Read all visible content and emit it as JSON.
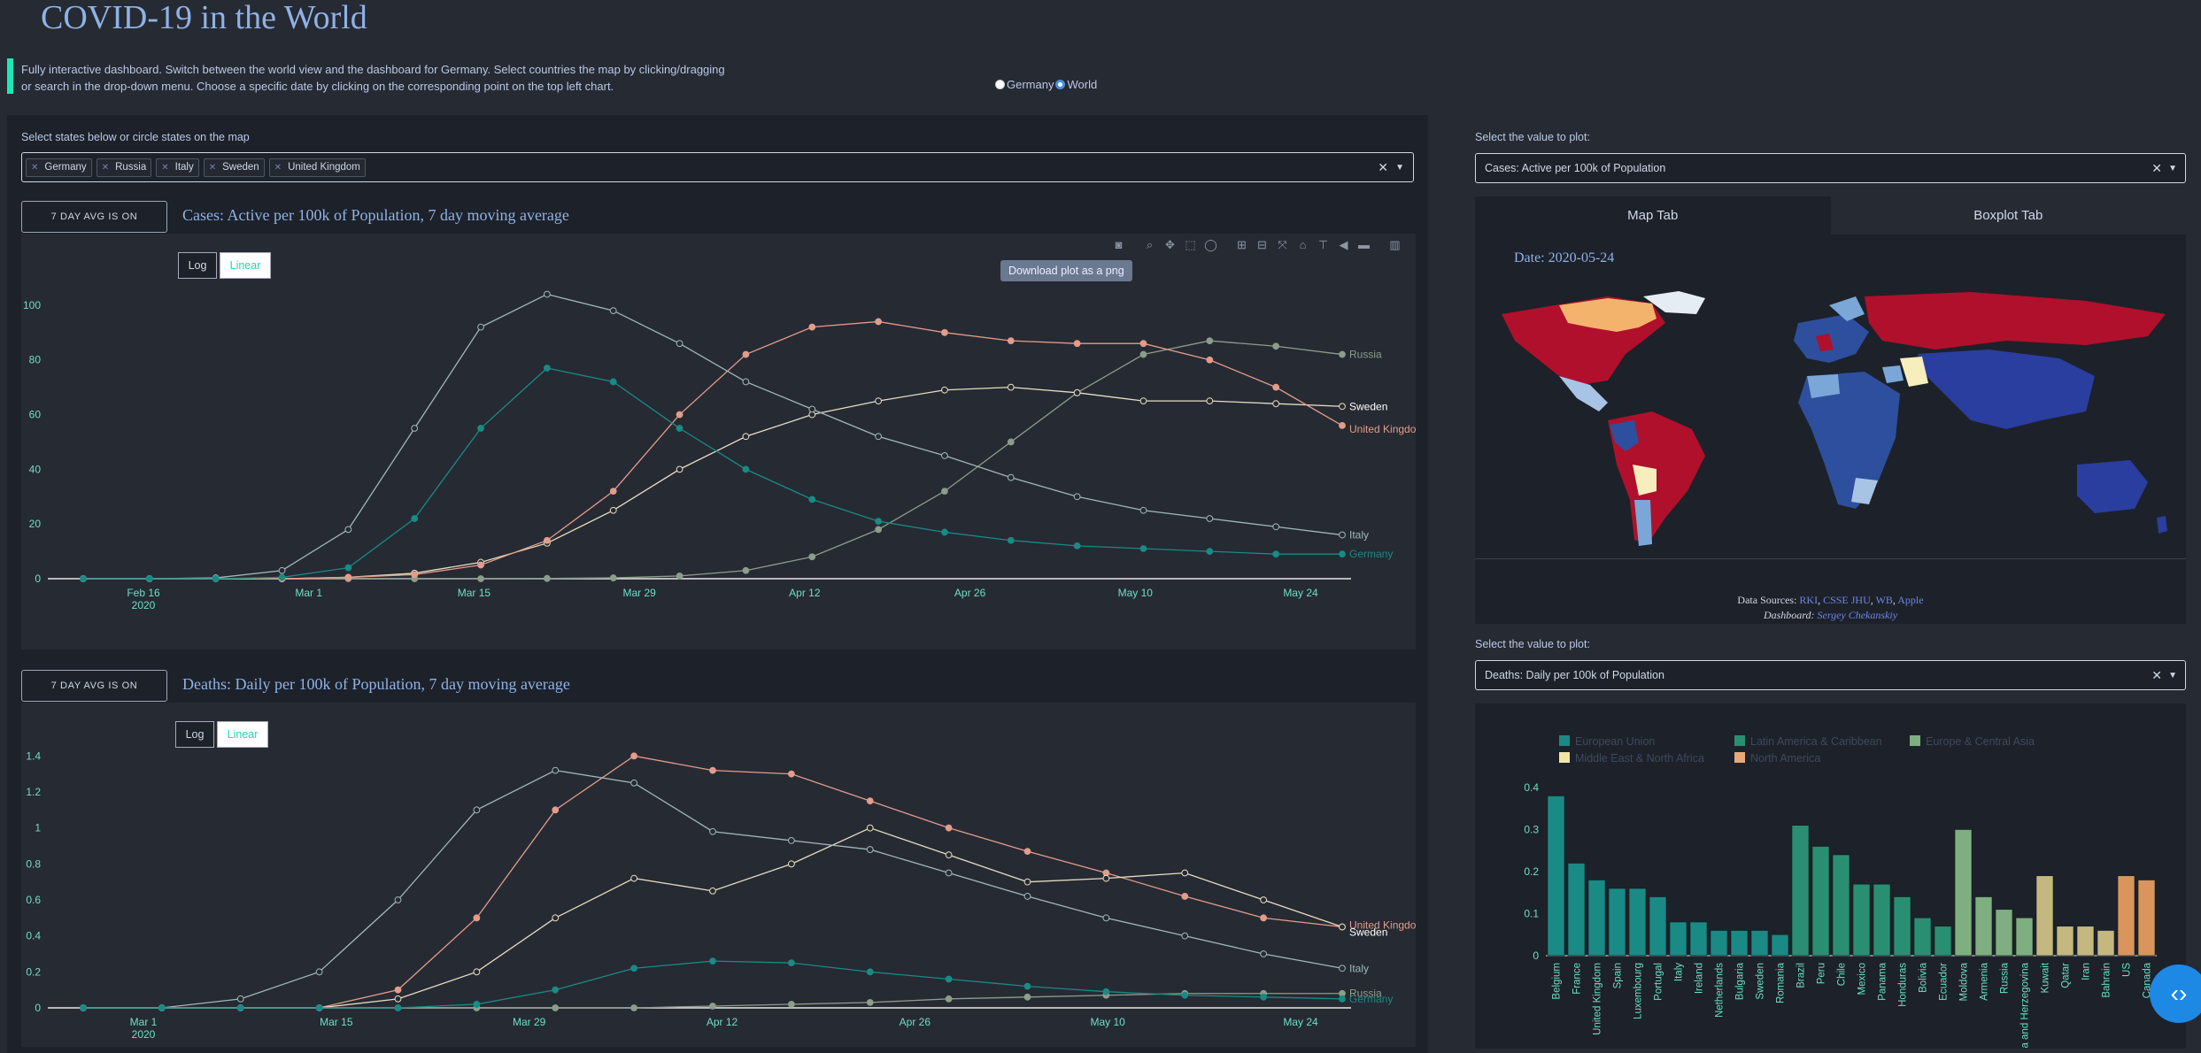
{
  "header": {
    "title": "COVID-19 in the World",
    "intro": "Fully interactive dashboard. Switch between the world view and the dashboard for Germany. Select countries the map by clicking/dragging or search in the drop-down menu. Choose a specific date by clicking on the corresponding point on the top left chart.",
    "view_options": [
      "Germany",
      "World"
    ],
    "view_selected": "World"
  },
  "left": {
    "select_label": "Select states below or circle states on the map",
    "chips": [
      "Germany",
      "Russia",
      "Italy",
      "Sweden",
      "United Kingdom"
    ],
    "avg_button": "7 DAY AVG IS ON",
    "log_label": "Log",
    "linear_label": "Linear",
    "tooltip": "Download plot as a png",
    "chart1_title": "Cases: Active per 100k of Population, 7 day moving average",
    "chart2_title": "Deaths: Daily per 100k of Population, 7 day moving average"
  },
  "right": {
    "select_label1": "Select the value to plot:",
    "select_value1": "Cases: Active per 100k of Population",
    "tab_map": "Map Tab",
    "tab_boxplot": "Boxplot Tab",
    "map_date": "Date: 2020-05-24",
    "sources_prefix": "Data Sources:",
    "sources": [
      "RKI",
      "CSSE JHU",
      "WB",
      "Apple"
    ],
    "dashboard_prefix": "Dashboard:",
    "dashboard_author": "Sergey Chekanskiy",
    "select_label2": "Select the value to plot:",
    "select_value2": "Deaths: Daily per 100k of Population"
  },
  "colors": {
    "germany": "#1a8a85",
    "russia": "#8c9d8a",
    "italy": "#9fb8b8",
    "sweden": "#e8ddc0",
    "uk": "#e39c8a",
    "accent": "#1de9b6",
    "peak": "#2f8a2a",
    "marker_red": "#e0302a"
  },
  "chart_data": [
    {
      "type": "line",
      "title": "Cases: Active per 100k of Population, 7 day moving average",
      "x_ticks": [
        "Feb 16\n2020",
        "Mar 1",
        "Mar 15",
        "Mar 29",
        "Apr 12",
        "Apr 26",
        "May 10",
        "May 24"
      ],
      "ylim": [
        0,
        110
      ],
      "y_ticks": [
        0,
        20,
        40,
        60,
        80,
        100
      ],
      "series": [
        {
          "name": "Russia",
          "values": [
            0,
            0,
            0,
            0,
            0,
            0,
            0,
            0.1,
            0.3,
            1,
            3,
            8,
            18,
            32,
            50,
            68,
            82,
            87,
            85,
            82
          ]
        },
        {
          "name": "Sweden",
          "values": [
            0,
            0,
            0,
            0,
            0.5,
            2,
            6,
            13,
            25,
            40,
            52,
            60,
            65,
            69,
            70,
            68,
            65,
            65,
            64,
            63
          ]
        },
        {
          "name": "United Kingdom",
          "values": [
            0,
            0,
            0,
            0,
            0.5,
            1.5,
            5,
            14,
            32,
            60,
            82,
            92,
            94,
            90,
            87,
            86,
            86,
            80,
            70,
            56
          ]
        },
        {
          "name": "Italy",
          "values": [
            0,
            0,
            0.3,
            3,
            18,
            55,
            92,
            104,
            98,
            86,
            72,
            62,
            52,
            45,
            37,
            30,
            25,
            22,
            19,
            16
          ]
        },
        {
          "name": "Germany",
          "values": [
            0,
            0,
            0,
            0.5,
            4,
            22,
            55,
            77,
            72,
            55,
            40,
            29,
            21,
            17,
            14,
            12,
            11,
            10,
            9,
            9
          ]
        }
      ]
    },
    {
      "type": "line",
      "title": "Deaths: Daily per 100k of Population, 7 day moving average",
      "x_ticks": [
        "Mar 1\n2020",
        "Mar 15",
        "Mar 29",
        "Apr 12",
        "Apr 26",
        "May 10",
        "May 24"
      ],
      "ylim": [
        0,
        1.5
      ],
      "y_ticks": [
        0,
        0.2,
        0.4,
        0.6,
        0.8,
        1,
        1.2,
        1.4
      ],
      "series": [
        {
          "name": "United Kingdom",
          "values": [
            0,
            0,
            0,
            0,
            0.1,
            0.5,
            1.1,
            1.4,
            1.32,
            1.3,
            1.15,
            1.0,
            0.87,
            0.75,
            0.62,
            0.5,
            0.45
          ]
        },
        {
          "name": "Sweden",
          "values": [
            0,
            0,
            0,
            0,
            0.05,
            0.2,
            0.5,
            0.72,
            0.65,
            0.8,
            1.0,
            0.85,
            0.7,
            0.72,
            0.75,
            0.6,
            0.45
          ]
        },
        {
          "name": "Italy",
          "values": [
            0,
            0,
            0.05,
            0.2,
            0.6,
            1.1,
            1.32,
            1.25,
            0.98,
            0.93,
            0.88,
            0.75,
            0.62,
            0.5,
            0.4,
            0.3,
            0.22
          ]
        },
        {
          "name": "Russia",
          "values": [
            0,
            0,
            0,
            0,
            0,
            0,
            0,
            0,
            0.01,
            0.02,
            0.03,
            0.05,
            0.06,
            0.07,
            0.08,
            0.08,
            0.08
          ]
        },
        {
          "name": "Germany",
          "values": [
            0,
            0,
            0,
            0,
            0,
            0.02,
            0.1,
            0.22,
            0.26,
            0.25,
            0.2,
            0.16,
            0.12,
            0.09,
            0.07,
            0.06,
            0.05
          ]
        }
      ]
    },
    {
      "type": "bar",
      "legend": [
        "European Union",
        "Latin America & Caribbean",
        "Europe & Central Asia",
        "Middle East & North Africa",
        "North America"
      ],
      "categories": [
        "Belgium",
        "France",
        "United Kingdom",
        "Spain",
        "Luxembourg",
        "Portugal",
        "Italy",
        "Ireland",
        "Netherlands",
        "Bulgaria",
        "Sweden",
        "Romania",
        "Brazil",
        "Peru",
        "Chile",
        "Mexico",
        "Panama",
        "Honduras",
        "Bolivia",
        "Ecuador",
        "Moldova",
        "Armenia",
        "Russia",
        "Bosnia and Herzegovina",
        "Kuwait",
        "Qatar",
        "Iran",
        "Bahrain",
        "US",
        "Canada"
      ],
      "values": [
        0.38,
        0.22,
        0.18,
        0.16,
        0.16,
        0.14,
        0.08,
        0.08,
        0.06,
        0.06,
        0.06,
        0.05,
        0.31,
        0.26,
        0.24,
        0.17,
        0.17,
        0.14,
        0.09,
        0.07,
        0.3,
        0.14,
        0.11,
        0.09,
        0.19,
        0.07,
        0.07,
        0.06,
        0.19,
        0.18
      ],
      "groups": [
        0,
        0,
        0,
        0,
        0,
        0,
        0,
        0,
        0,
        0,
        0,
        0,
        1,
        1,
        1,
        1,
        1,
        1,
        1,
        1,
        2,
        2,
        2,
        2,
        3,
        3,
        3,
        3,
        4,
        4
      ],
      "ylim": [
        0,
        0.4
      ],
      "y_ticks": [
        0,
        0.1,
        0.2,
        0.3,
        0.4
      ]
    }
  ]
}
